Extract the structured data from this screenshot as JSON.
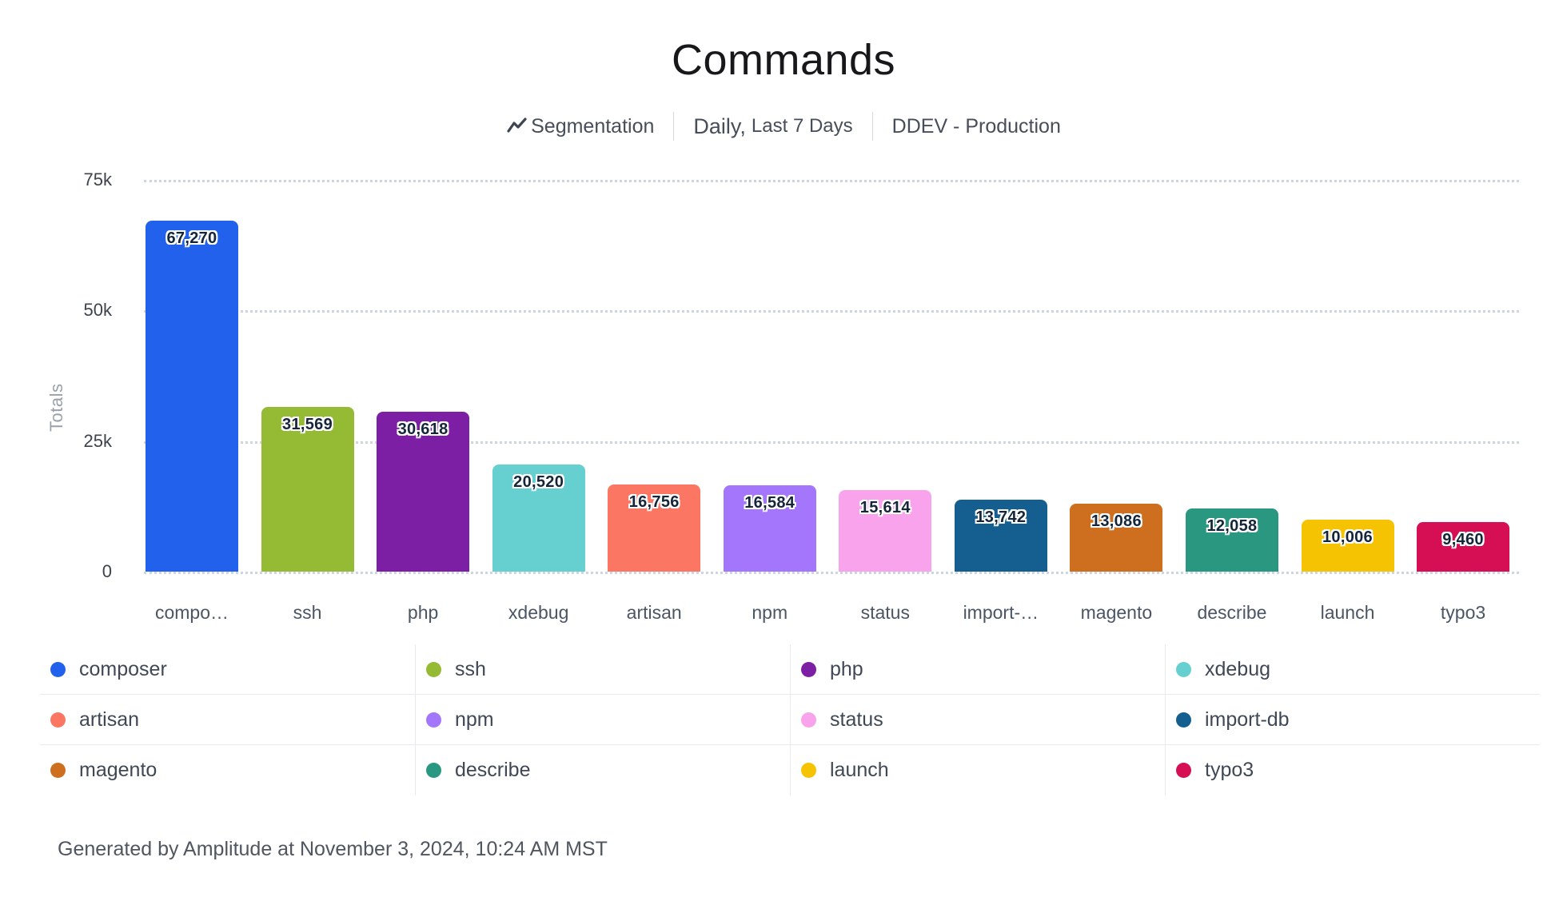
{
  "header": {
    "title": "Commands",
    "segmentation_label": "Segmentation",
    "segmentation_icon": "line-chart-zigzag-icon",
    "period_main": "Daily,",
    "period_sub": "Last 7 Days",
    "project": "DDEV - Production"
  },
  "chart_data": {
    "type": "bar",
    "title": "Commands",
    "xlabel": "",
    "ylabel": "Totals",
    "ylim": [
      0,
      75000
    ],
    "grid": "horizontal dotted gridlines at 0, 25k, 50k, 75k",
    "legend_position": "bottom, 4 columns x 3 rows",
    "yticks": [
      {
        "label": "75k",
        "value": 75000
      },
      {
        "label": "50k",
        "value": 50000
      },
      {
        "label": "25k",
        "value": 25000
      },
      {
        "label": "0",
        "value": 0
      }
    ],
    "categories": [
      "compo…",
      "ssh",
      "php",
      "xdebug",
      "artisan",
      "npm",
      "status",
      "import-…",
      "magento",
      "describe",
      "launch",
      "typo3"
    ],
    "bars": [
      {
        "name": "composer",
        "axis_label": "compo…",
        "value": 67270,
        "display_value": "67,270",
        "color": "#2261ec"
      },
      {
        "name": "ssh",
        "axis_label": "ssh",
        "value": 31569,
        "display_value": "31,569",
        "color": "#95ba33"
      },
      {
        "name": "php",
        "axis_label": "php",
        "value": 30618,
        "display_value": "30,618",
        "color": "#7d1fa5"
      },
      {
        "name": "xdebug",
        "axis_label": "xdebug",
        "value": 20520,
        "display_value": "20,520",
        "color": "#66d0d0"
      },
      {
        "name": "artisan",
        "axis_label": "artisan",
        "value": 16756,
        "display_value": "16,756",
        "color": "#fb7763"
      },
      {
        "name": "npm",
        "axis_label": "npm",
        "value": 16584,
        "display_value": "16,584",
        "color": "#a476fb"
      },
      {
        "name": "status",
        "axis_label": "status",
        "value": 15614,
        "display_value": "15,614",
        "color": "#f8a3ec"
      },
      {
        "name": "import-db",
        "axis_label": "import-…",
        "value": 13742,
        "display_value": "13,742",
        "color": "#155f90"
      },
      {
        "name": "magento",
        "axis_label": "magento",
        "value": 13086,
        "display_value": "13,086",
        "color": "#cd6f1e"
      },
      {
        "name": "describe",
        "axis_label": "describe",
        "value": 12058,
        "display_value": "12,058",
        "color": "#2a9781"
      },
      {
        "name": "launch",
        "axis_label": "launch",
        "value": 10006,
        "display_value": "10,006",
        "color": "#f6c303"
      },
      {
        "name": "typo3",
        "axis_label": "typo3",
        "value": 9460,
        "display_value": "9,460",
        "color": "#d60f55"
      }
    ]
  },
  "footer": {
    "text": "Generated by Amplitude at November 3, 2024, 10:24 AM MST"
  }
}
